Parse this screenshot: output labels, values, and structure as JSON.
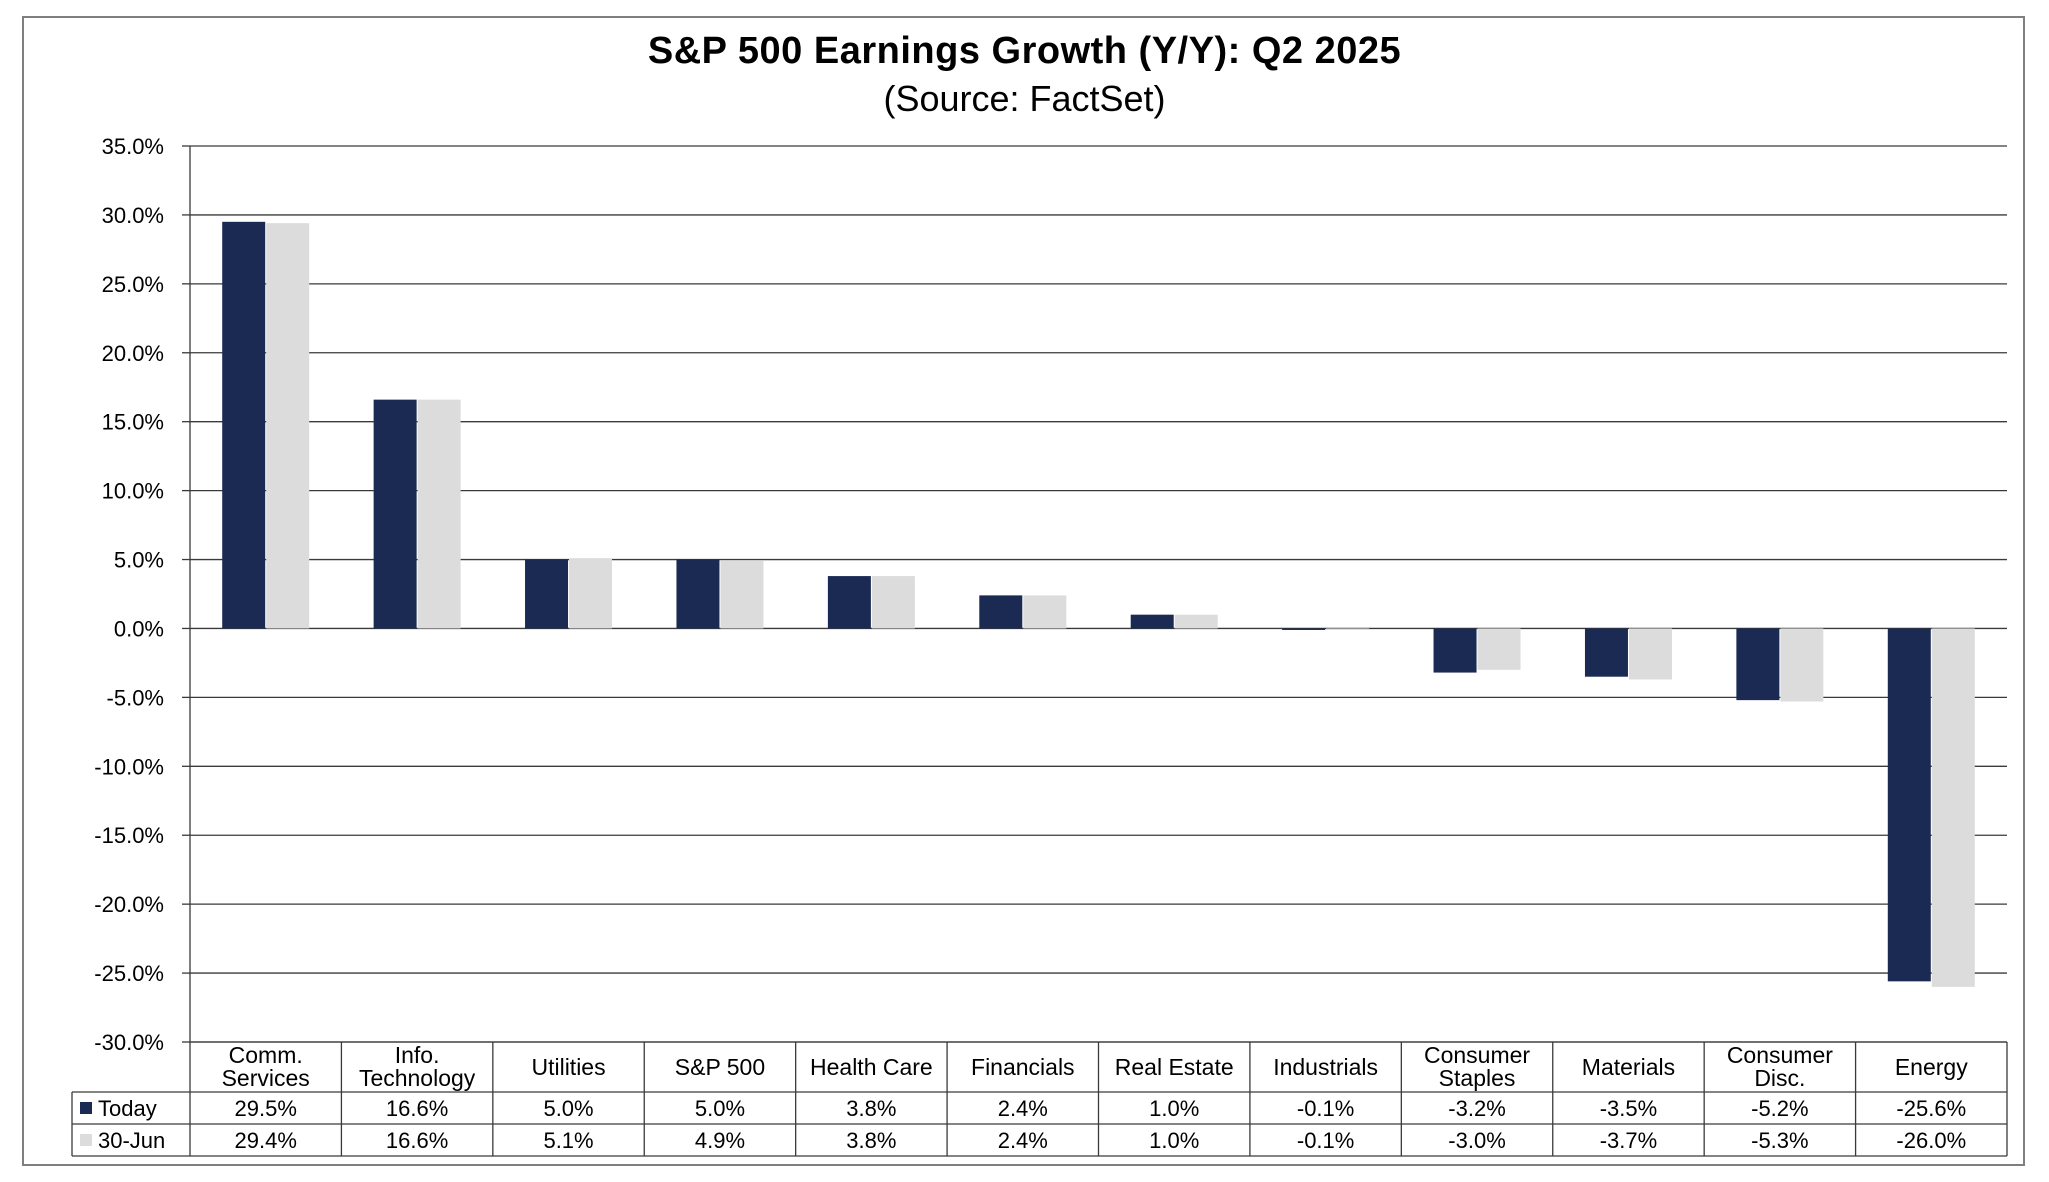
{
  "title": "S&P 500 Earnings Growth (Y/Y): Q2 2025",
  "subtitle": "(Source: FactSet)",
  "colors": {
    "today": "#1b2a52",
    "jun30": "#dcdcdc",
    "grid": "#3a3a3a",
    "frame": "#7f7f7f"
  },
  "chart_data": {
    "type": "bar",
    "title": "S&P 500 Earnings Growth (Y/Y): Q2 2025",
    "subtitle": "(Source: FactSet)",
    "categories": [
      [
        "Comm.",
        "Services"
      ],
      [
        "Info.",
        "Technology"
      ],
      [
        "Utilities"
      ],
      [
        "S&P 500"
      ],
      [
        "Health Care"
      ],
      [
        "Financials"
      ],
      [
        "Real Estate"
      ],
      [
        "Industrials"
      ],
      [
        "Consumer",
        "Staples"
      ],
      [
        "Materials"
      ],
      [
        "Consumer",
        "Disc."
      ],
      [
        "Energy"
      ]
    ],
    "series": [
      {
        "name": "Today",
        "color": "#1b2a52",
        "values": [
          29.5,
          16.6,
          5.0,
          5.0,
          3.8,
          2.4,
          1.0,
          -0.1,
          -3.2,
          -3.5,
          -5.2,
          -25.6
        ],
        "labels": [
          "29.5%",
          "16.6%",
          "5.0%",
          "5.0%",
          "3.8%",
          "2.4%",
          "1.0%",
          "-0.1%",
          "-3.2%",
          "-3.5%",
          "-5.2%",
          "-25.6%"
        ]
      },
      {
        "name": "30-Jun",
        "color": "#dcdcdc",
        "values": [
          29.4,
          16.6,
          5.1,
          4.9,
          3.8,
          2.4,
          1.0,
          -0.1,
          -3.0,
          -3.7,
          -5.3,
          -26.0
        ],
        "labels": [
          "29.4%",
          "16.6%",
          "5.1%",
          "4.9%",
          "3.8%",
          "2.4%",
          "1.0%",
          "-0.1%",
          "-3.0%",
          "-3.7%",
          "-5.3%",
          "-26.0%"
        ]
      }
    ],
    "yticks": [
      "35.0%",
      "30.0%",
      "25.0%",
      "20.0%",
      "15.0%",
      "10.0%",
      "5.0%",
      "0.0%",
      "-5.0%",
      "-10.0%",
      "-15.0%",
      "-20.0%",
      "-25.0%",
      "-30.0%"
    ],
    "ylim": [
      -30,
      35
    ],
    "ystep": 5,
    "grid": true,
    "legend": "data-table"
  }
}
